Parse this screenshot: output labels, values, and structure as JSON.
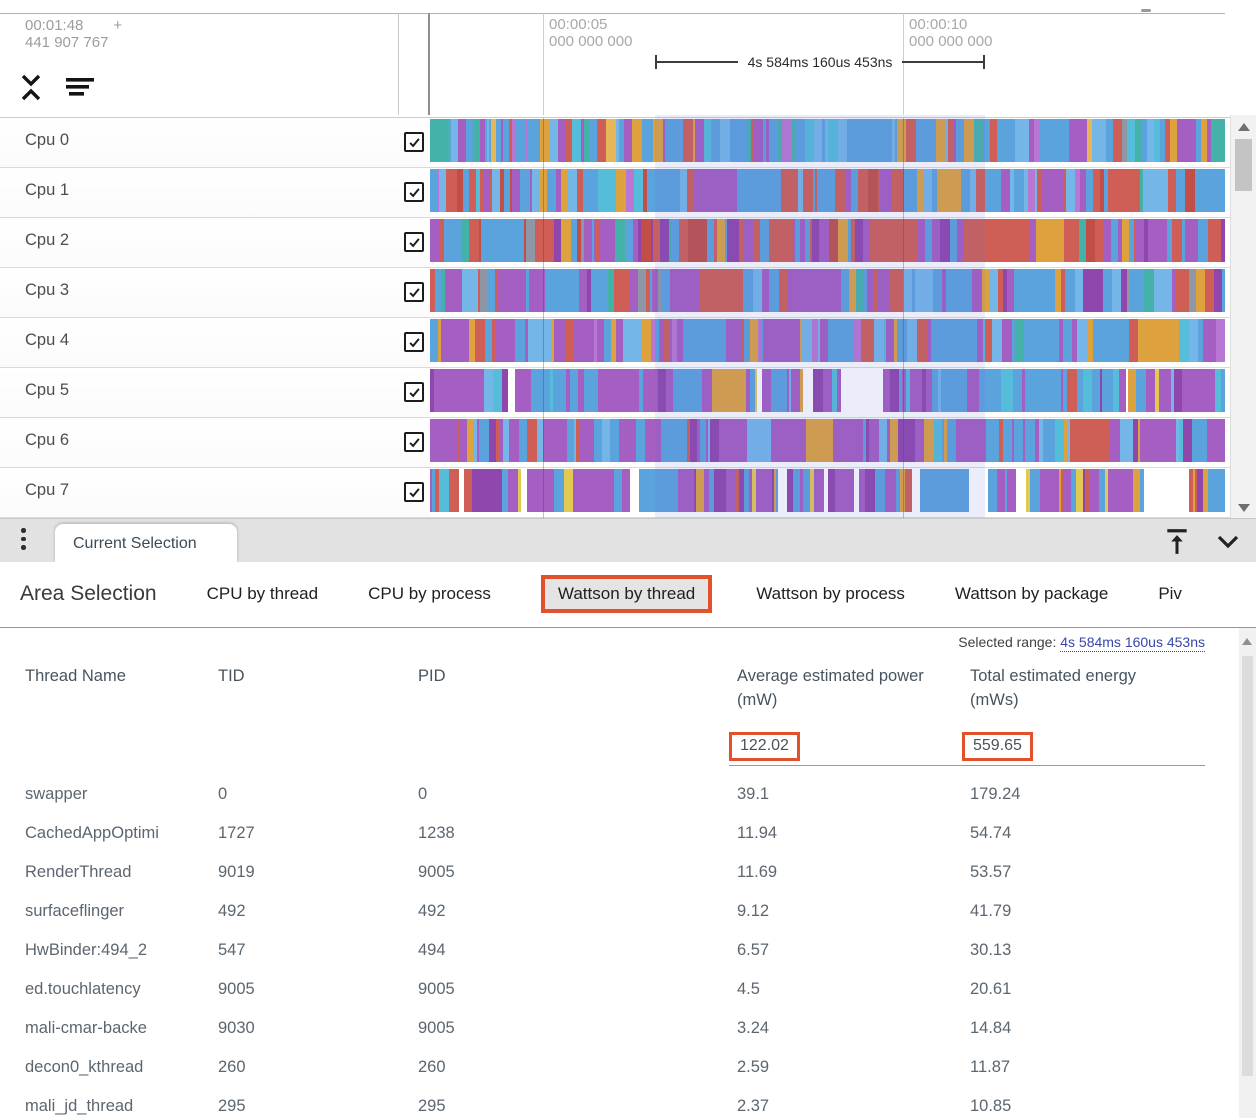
{
  "colors": {
    "accent_orange": "#e0512c",
    "link_blue": "#3747a8",
    "header_text": "#47545f",
    "row_text": "#5c6670",
    "selection_overlay": "#6473d7",
    "palette": {
      "blue": "#5ba3dd",
      "blue2": "#74b6e8",
      "blue3": "#4a90cf",
      "cyan": "#55bcd9",
      "teal": "#45b2a9",
      "purple": "#a55ec2",
      "purple2": "#8f46ad",
      "violet": "#b777d2",
      "red": "#cf5f56",
      "red2": "#c14f48",
      "orange": "#dda13e",
      "orange2": "#e6b657",
      "yellow": "#e2ca52",
      "green": "#7cb356",
      "gray": "#8d97a6",
      "white": "#ffffff"
    }
  },
  "timeline": {
    "origin": {
      "time": "00:01:48",
      "plus": "+",
      "ns": "441 907 767"
    },
    "ticks": [
      {
        "time": "00:00:05",
        "ns": "000 000 000"
      },
      {
        "time": "00:00:10",
        "ns": "000 000 000"
      }
    ],
    "range_label": "4s 584ms 160us 453ns",
    "tracks": [
      {
        "label": "Cpu 0",
        "checked": true,
        "mix": {
          "blue": 5,
          "blue2": 2,
          "cyan": 1,
          "teal": 1.2,
          "purple": 1.8,
          "violet": 0.6,
          "orange": 1.4,
          "orange2": 0.5,
          "red": 0.9,
          "gray": 0.3
        }
      },
      {
        "label": "Cpu 1",
        "checked": true,
        "mix": {
          "red": 3.2,
          "red2": 1.2,
          "blue": 3,
          "blue2": 1.2,
          "purple": 1.6,
          "violet": 0.5,
          "orange": 0.6,
          "teal": 0.4,
          "cyan": 0.4
        }
      },
      {
        "label": "Cpu 2",
        "checked": true,
        "mix": {
          "red": 2.8,
          "red2": 1,
          "purple": 2.6,
          "purple2": 1,
          "blue": 2.4,
          "orange": 1,
          "teal": 0.5,
          "gray": 0.4
        }
      },
      {
        "label": "Cpu 3",
        "checked": true,
        "mix": {
          "blue": 3,
          "blue2": 1,
          "purple": 2.4,
          "purple2": 0.8,
          "red": 1.8,
          "orange": 0.7,
          "gray": 0.6,
          "teal": 0.4
        }
      },
      {
        "label": "Cpu 4",
        "checked": true,
        "mix": {
          "blue": 3.4,
          "blue2": 1.2,
          "purple": 2.4,
          "violet": 0.7,
          "orange": 1,
          "red": 1,
          "teal": 0.6,
          "cyan": 0.5
        }
      },
      {
        "label": "Cpu 5",
        "checked": true,
        "mix": {
          "purple": 3,
          "purple2": 1,
          "blue": 2.6,
          "blue2": 1,
          "white": 1.1,
          "cyan": 0.6,
          "orange": 0.4,
          "yellow": 0.25,
          "red": 0.3
        }
      },
      {
        "label": "Cpu 6",
        "checked": true,
        "mix": {
          "purple": 3.4,
          "purple2": 1.2,
          "blue": 2.6,
          "blue2": 0.8,
          "red": 0.6,
          "orange": 0.6,
          "cyan": 0.4
        }
      },
      {
        "label": "Cpu 7",
        "checked": true,
        "mix": {
          "purple": 3,
          "purple2": 1,
          "blue": 2.4,
          "white": 1.2,
          "red": 0.9,
          "orange": 0.5,
          "yellow": 0.4,
          "cyan": 0.4
        }
      }
    ]
  },
  "selection_bar": {
    "tab_label": "Current Selection"
  },
  "detail": {
    "title": "Area Selection",
    "tabs": [
      {
        "label": "CPU by thread",
        "active": false
      },
      {
        "label": "CPU by process",
        "active": false
      },
      {
        "label": "Wattson by thread",
        "active": true
      },
      {
        "label": "Wattson by process",
        "active": false
      },
      {
        "label": "Wattson by package",
        "active": false
      },
      {
        "label": "Piv",
        "active": false
      }
    ],
    "selected_range": {
      "label": "Selected range:",
      "value": "4s 584ms 160us 453ns"
    },
    "table": {
      "columns": [
        "Thread Name",
        "TID",
        "PID",
        "Average estimated power (mW)",
        "Total estimated energy (mWs)"
      ],
      "summary": [
        "122.02",
        "559.65"
      ],
      "rows": [
        [
          "swapper",
          "0",
          "0",
          "39.1",
          "179.24"
        ],
        [
          "CachedAppOptimi",
          "1727",
          "1238",
          "11.94",
          "54.74"
        ],
        [
          "RenderThread",
          "9019",
          "9005",
          "11.69",
          "53.57"
        ],
        [
          "surfaceflinger",
          "492",
          "492",
          "9.12",
          "41.79"
        ],
        [
          "HwBinder:494_2",
          "547",
          "494",
          "6.57",
          "30.13"
        ],
        [
          "ed.touchlatency",
          "9005",
          "9005",
          "4.5",
          "20.61"
        ],
        [
          "mali-cmar-backe",
          "9030",
          "9005",
          "3.24",
          "14.84"
        ],
        [
          "decon0_kthread",
          "260",
          "260",
          "2.59",
          "11.87"
        ],
        [
          "mali_jd_thread",
          "295",
          "295",
          "2.37",
          "10.85"
        ]
      ]
    }
  }
}
